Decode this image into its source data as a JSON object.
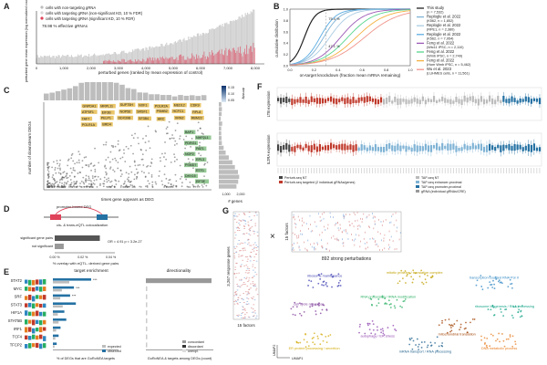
{
  "panels": {
    "A": {
      "label": "A",
      "legend": [
        {
          "text": "cells with non-targeting gRNA",
          "color": "#bdbdbd"
        },
        {
          "text": "cells with targeting gRNA (non-significant KD, 10 % FDR)",
          "color": "#d8d8d8"
        },
        {
          "text": "cells with targeting gRNA (significant KD, 10 % FDR)",
          "color": "#e0425a"
        }
      ],
      "note": "78.98 % effective gRNAs",
      "xlabel": "perturbed genes (ranked by mean expression of control)",
      "ylabel": "perturbed gene mean expression (log normalized counts)",
      "xticks": [
        "0",
        "1,000",
        "2,000",
        "3,000",
        "4,000",
        "5,000",
        "6,000",
        "7,000",
        "8,000"
      ]
    },
    "B": {
      "label": "B",
      "xlabel": "on-target knockdown (fraction mean mRNA remaining)",
      "ylabel": "cumulative distribution",
      "xticks": [
        "0.0",
        "0.2",
        "0.4",
        "0.6",
        "0.8",
        "1.0"
      ],
      "yticks": [
        "0.0",
        "0.2",
        "0.4",
        "0.6",
        "0.8",
        "1.0"
      ],
      "annotations": [
        "75.4 %",
        "47.1 %"
      ],
      "legend": [
        {
          "text": "This study",
          "sub": "(n = 7,532)",
          "color": "#222222"
        },
        {
          "text": "Replogle et al. 2022",
          "sub": "(K562, n = 1,852)",
          "color": "#7fb3d5"
        },
        {
          "text": "Replogle et al. 2022",
          "sub": "(RPE1, n = 2,380)",
          "color": "#a9cce3"
        },
        {
          "text": "Replogle et al. 2022",
          "sub": "(K562, n = 7,954)",
          "color": "#5dade2"
        },
        {
          "text": "Feng et al. 2022",
          "sub": "(Wtc11 iPSC, n = 2,110)",
          "color": "#9b59b6"
        },
        {
          "text": "Feng et al. 2022",
          "sub": "(Wmb iPSC, n = 2,749)",
          "color": "#58d68d"
        },
        {
          "text": "Feng et al. 2022",
          "sub": "(Hom Wmb iPSC, n = 5,462)",
          "color": "#f5b041"
        },
        {
          "text": "Wu et al. 2023",
          "sub": "(LUHMES cells, n = 11,561)",
          "color": "#f1948a"
        }
      ]
    },
    "C": {
      "label": "C",
      "ylabel": "number of downstream DEGs",
      "xlabel": "times gene appears as DEG",
      "side_xlabel": "# genes",
      "side_xticks": [
        "1,000",
        "2,000"
      ],
      "colorbar_label": "density",
      "colorbar_ticks": [
        "0.15",
        "0.10",
        "0.05"
      ],
      "gene_labels_gold": [
        "GNPDA1",
        "MRPL11",
        "SUPT5H",
        "NXF1",
        "POLR2A",
        "MED12",
        "CDK9",
        "ATP5F1",
        "EIF3B",
        "NOP56",
        "SRSF1",
        "PSMB2",
        "HCFC1",
        "RPL8",
        "TAF7",
        "PELP1",
        "DDX39B",
        "SF3B4",
        "ARC",
        "XRN2",
        "RBM22",
        "POLR1A",
        "BRD4"
      ],
      "gene_labels_green": [
        "BAP1",
        "NHP2L1",
        "PDRG1",
        "PAF1",
        "NOP2",
        "RPL3",
        "PSMD7",
        "RTF1",
        "DHX15",
        "EIF3E"
      ]
    },
    "D": {
      "label": "D",
      "promoter_label": "promoter-bound DEG",
      "link_label": "cis- & trans-eQTL colocalization",
      "rows": [
        {
          "label": "significant gene pairs",
          "value": 1.0
        },
        {
          "label": "not significant",
          "value": 0.2
        }
      ],
      "xticks": [
        "0.00 %",
        "0.02 %",
        "0.04 %"
      ],
      "xlabel": "% overlap with eQTL- derived gene pairs",
      "stat": "OR = 4.91 p < 3.2e-27"
    },
    "E": {
      "label": "E",
      "section1": "target enrichment",
      "section2": "directionality",
      "factors": [
        "STAT2",
        "MYC",
        "SRF",
        "STAT3",
        "HIF1A",
        "STAT5B",
        "IRF1",
        "TCF4",
        "TFCP2"
      ],
      "xlabel1": "% of DEGs that are GoRoNEA targets",
      "xlabel2": "GoRoNEA & targets among DEGs (count)",
      "legend1": [
        "expected",
        "observed"
      ],
      "legend2": [
        "concordant",
        "discordant",
        "unexpl."
      ],
      "bar_values": [
        1.0,
        0.55,
        0.45,
        0.6,
        0.3,
        0.35,
        0.2,
        0.15,
        0.1
      ],
      "directionality": [
        1.0,
        0.0,
        0.0,
        0.0,
        0.0,
        0.0,
        0.0,
        0.0,
        0.0
      ]
    },
    "F": {
      "label": "F",
      "ylabel_top": "LTB expression",
      "ylabel_bottom": "IL2RA expression",
      "legend": [
        {
          "text": "Perturb-seq NT",
          "color": "#444444"
        },
        {
          "text": "Perturb-seq targeted (2 individual gRNAs/genes)",
          "color": "#c0392b"
        },
        {
          "text": "TAP-seq NT",
          "color": "#bbbbbb"
        },
        {
          "text": "TAP-seq enhancer-proximal",
          "color": "#7fb3d5"
        },
        {
          "text": "TAP-seq promoter-proximal",
          "color": "#2471a3"
        },
        {
          "text": "gRNA (individual gRNAs/CRE)",
          "color": "#999999"
        }
      ]
    },
    "G": {
      "label": "G",
      "rows_label": "3,267 response genes",
      "cols_label": "15 factors",
      "left_bottom_label": "15 factors",
      "pert_label": "892 strong perturbations",
      "times": "×",
      "umap_x": "UMAP1",
      "umap_y": "UMAP2",
      "clusters": [
        {
          "text": "ribosome maintenance",
          "color": "#3a3ab0"
        },
        {
          "text": "mitotic proteins / translation complex",
          "color": "#c0a000"
        },
        {
          "text": "transcription-coupled RNA Pol II",
          "color": "#2e86c1"
        },
        {
          "text": "cell cycle regulation",
          "color": "#7d3c98"
        },
        {
          "text": "RNA processing / tRNA modification",
          "color": "#27ae60"
        },
        {
          "text": "ribosome biogenesis / RNA processing",
          "color": "#17a589"
        },
        {
          "text": "ER protein processing / secretion",
          "color": "#d4ac0d"
        },
        {
          "text": "mRNA transport / RNA processing",
          "color": "#1f618d"
        },
        {
          "text": "DNA metabolic process",
          "color": "#e67e22"
        },
        {
          "text": "autophagy / ER stress",
          "color": "#8e44ad"
        },
        {
          "text": "mitochondrial translation",
          "color": "#a04000"
        }
      ]
    }
  },
  "colors": {
    "red": "#e0425a",
    "grey": "#c8c8c8",
    "blue": "#2471a3",
    "gold": "#e8c05a",
    "green": "#8bc28b"
  }
}
